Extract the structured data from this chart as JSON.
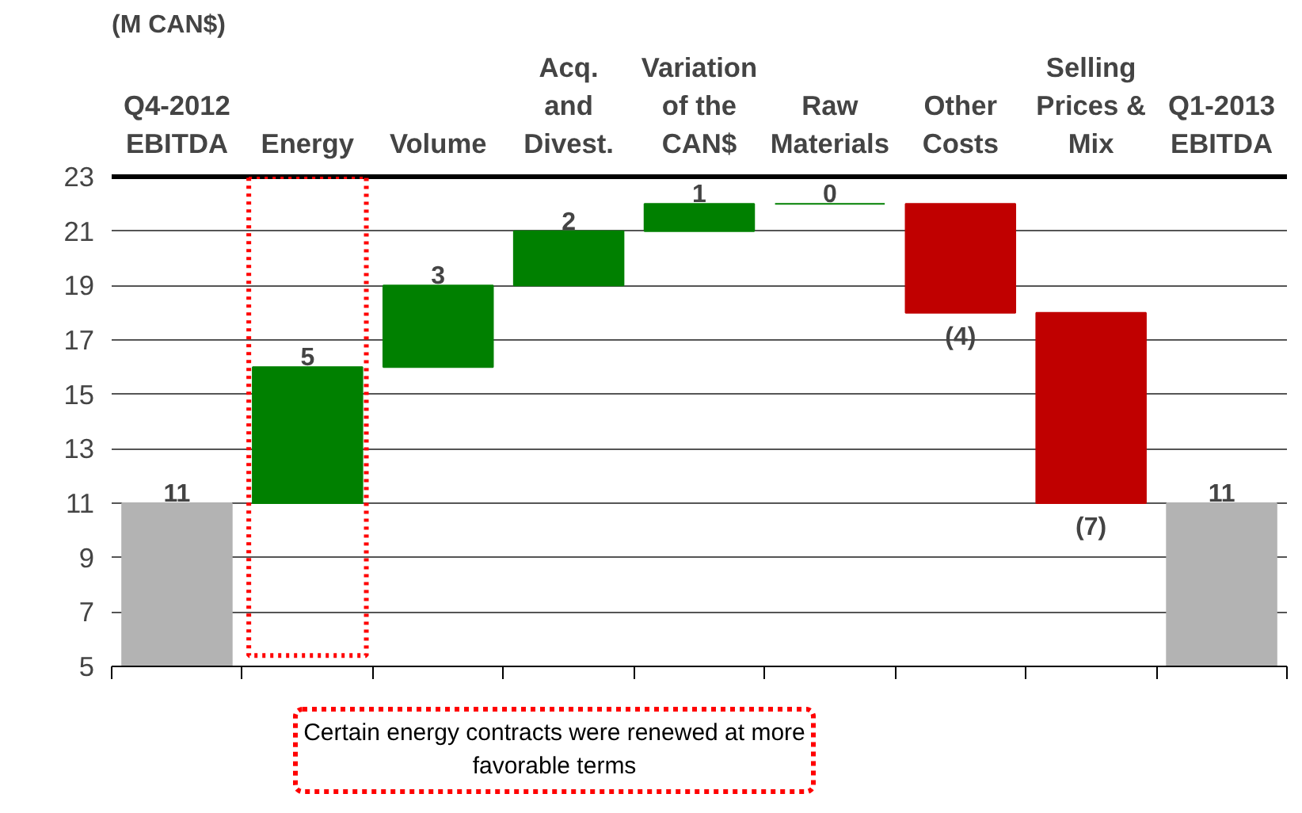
{
  "chart_data": {
    "type": "bar",
    "ylabel": "(M CAN$)",
    "categories": [
      "Q4-2012\nEBITDA",
      "Energy",
      "Volume",
      "Acq.\nand\nDivest.",
      "Variation\nof the\nCAN$",
      "Raw\nMaterials",
      "Other\nCosts",
      "Selling\nPrices &\nMix",
      "Q1-2013\nEBITDA"
    ],
    "values": [
      11,
      5,
      3,
      2,
      1,
      0,
      -4,
      -7,
      11
    ],
    "base": [
      0,
      11,
      16,
      19,
      21,
      22,
      22,
      18,
      0
    ],
    "colors": [
      "#b3b3b3",
      "#008000",
      "#008000",
      "#008000",
      "#008000",
      "#008000",
      "#c00000",
      "#c00000",
      "#b3b3b3"
    ],
    "value_labels": [
      "11",
      "5",
      "3",
      "2",
      "1",
      "0",
      "(4)",
      "(7)",
      "11"
    ],
    "ylim": [
      5,
      23
    ],
    "yticks": [
      5,
      7,
      9,
      11,
      13,
      15,
      17,
      19,
      21,
      23
    ],
    "grid": "y",
    "annotations": [
      "Certain energy contracts were renewed at more favorable terms"
    ]
  }
}
